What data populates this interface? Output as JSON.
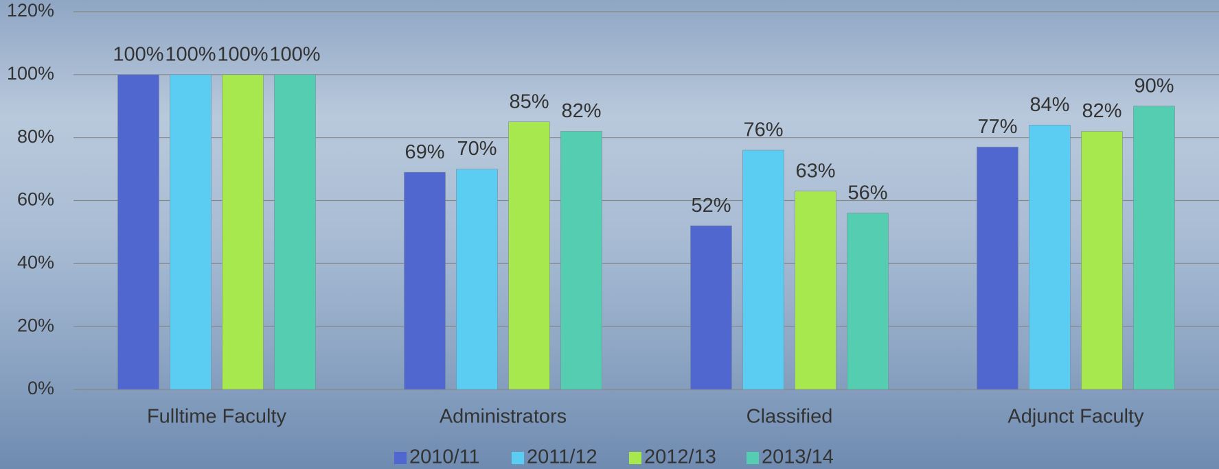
{
  "chart_data": {
    "type": "bar",
    "categories": [
      "Fulltime Faculty",
      "Administrators",
      "Classified",
      "Adjunct Faculty"
    ],
    "series": [
      {
        "name": "2010/11",
        "color": "#4f67cf",
        "values": [
          100,
          69,
          52,
          77
        ],
        "value_labels": [
          "100%",
          "69%",
          "52%",
          "77%"
        ]
      },
      {
        "name": "2011/12",
        "color": "#5bcdf3",
        "values": [
          100,
          70,
          76,
          84
        ],
        "value_labels": [
          "100%",
          "70%",
          "76%",
          "84%"
        ]
      },
      {
        "name": "2012/13",
        "color": "#a6e84e",
        "values": [
          100,
          85,
          63,
          82
        ],
        "value_labels": [
          "100%",
          "85%",
          "63%",
          "82%"
        ]
      },
      {
        "name": "2013/14",
        "color": "#55cdb0",
        "values": [
          100,
          82,
          56,
          90
        ],
        "value_labels": [
          "100%",
          "82%",
          "56%",
          "90%"
        ]
      }
    ],
    "ylim": [
      0,
      120
    ],
    "yticks": [
      {
        "value": 0,
        "label": "0%"
      },
      {
        "value": 20,
        "label": "20%"
      },
      {
        "value": 40,
        "label": "40%"
      },
      {
        "value": 60,
        "label": "60%"
      },
      {
        "value": 80,
        "label": "80%"
      },
      {
        "value": 100,
        "label": "100%"
      },
      {
        "value": 120,
        "label": "120%"
      }
    ],
    "grid": true,
    "legend": "bottom"
  }
}
